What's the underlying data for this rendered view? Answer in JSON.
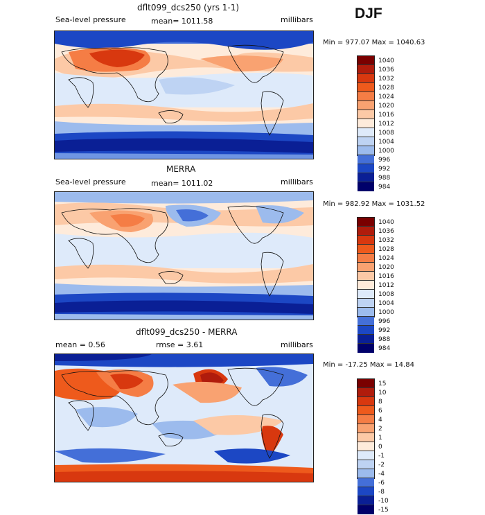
{
  "season": "DJF",
  "panels": [
    {
      "title": "dflt099_dcs250 (yrs 1-1)",
      "left_label": "Sea-level pressure",
      "mid_label": "mean= 1011.58",
      "right_label": "millibars",
      "minmax": "Min = 977.07 Max = 1040.63",
      "colorbar_labels": [
        "1040",
        "1036",
        "1032",
        "1028",
        "1024",
        "1020",
        "1016",
        "1012",
        "1008",
        "1004",
        "1000",
        "996",
        "992",
        "988",
        "984"
      ]
    },
    {
      "title": "MERRA",
      "left_label": "Sea-level pressure",
      "mid_label": "mean= 1011.02",
      "right_label": "millibars",
      "minmax": "Min = 982.92 Max = 1031.52",
      "colorbar_labels": [
        "1040",
        "1036",
        "1032",
        "1028",
        "1024",
        "1020",
        "1016",
        "1012",
        "1008",
        "1004",
        "1000",
        "996",
        "992",
        "988",
        "984"
      ]
    },
    {
      "title": "dflt099_dcs250 - MERRA",
      "left_label": "mean =    0.56",
      "mid_label": "rmse =    3.61",
      "right_label": "millibars",
      "minmax": "Min = -17.25 Max =   14.84",
      "colorbar_labels": [
        "15",
        "10",
        "8",
        "6",
        "4",
        "2",
        "1",
        "0",
        "-1",
        "-2",
        "-4",
        "-6",
        "-8",
        "-10",
        "-15"
      ]
    }
  ],
  "colors": {
    "scale": [
      "#7a0000",
      "#b01c0c",
      "#d8380f",
      "#ee5a1c",
      "#f57d45",
      "#f9a271",
      "#fcc9a6",
      "#feebdb",
      "#deeafa",
      "#bed3f3",
      "#9cbbed",
      "#6f95e3",
      "#446fd8",
      "#1c47c4",
      "#0a1f95",
      "#00006a"
    ]
  }
}
